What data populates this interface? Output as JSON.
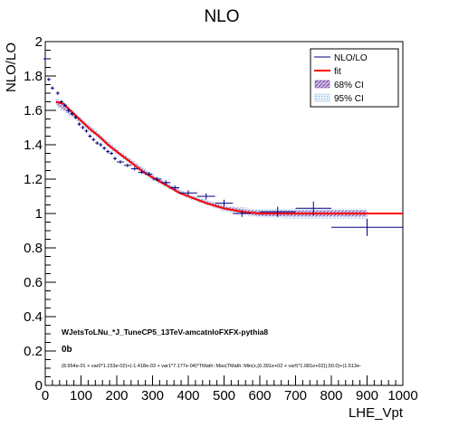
{
  "chart_data": {
    "type": "scatter",
    "title": "NLO",
    "xlabel": "LHE_Vpt",
    "ylabel": "NLO/LO",
    "xlim": [
      0,
      1000
    ],
    "ylim": [
      0,
      2
    ],
    "x_ticks": [
      0,
      100,
      200,
      300,
      400,
      500,
      600,
      700,
      800,
      900,
      1000
    ],
    "x_tick_labels": [
      "0",
      "100",
      "200",
      "300",
      "400",
      "500",
      "600",
      "700",
      "800",
      "900",
      "1000"
    ],
    "y_ticks": [
      0,
      0.2,
      0.4,
      0.6,
      0.8,
      1,
      1.2,
      1.4,
      1.6,
      1.8,
      2
    ],
    "y_tick_labels": [
      "0",
      "0.2",
      "0.4",
      "0.6",
      "0.8",
      "1",
      "1.2",
      "1.4",
      "1.6",
      "1.8",
      "2"
    ],
    "legend": {
      "position": "top-right",
      "entries": [
        {
          "label": "NLO/LO",
          "color": "#000080",
          "style": "errorbar"
        },
        {
          "label": "fit",
          "color": "#ff0000",
          "style": "line"
        },
        {
          "label": "68% CI",
          "color": "#6a3d9a",
          "style": "hatched-fill"
        },
        {
          "label": "95% CI",
          "color": "#87b8e0",
          "style": "dotted-fill"
        }
      ]
    },
    "annotations": [
      "WJetsToLNu_*J_TuneCP5_13TeV-amcatnloFXFX-pythia8",
      "0b",
      "(8.954e-01 + var0*1.153e-02)+(-1.418e-03 + var1*7.177e-04)*TMath::Max(TMath::Min(x,(6.391e+02 + var5*1.081e+02)),50.0)+(1.513e-"
    ],
    "series": [
      {
        "name": "NLO/LO",
        "color": "#000080",
        "points": [
          {
            "x": 0,
            "xerr": 5,
            "y": 1.9,
            "yerr": 0.01
          },
          {
            "x": 10,
            "xerr": 5,
            "y": 1.78,
            "yerr": 0.01
          },
          {
            "x": 20,
            "xerr": 5,
            "y": 1.73,
            "yerr": 0.01
          },
          {
            "x": 35,
            "xerr": 5,
            "y": 1.7,
            "yerr": 0.01
          },
          {
            "x": 45,
            "xerr": 5,
            "y": 1.65,
            "yerr": 0.01
          },
          {
            "x": 55,
            "xerr": 5,
            "y": 1.63,
            "yerr": 0.01
          },
          {
            "x": 65,
            "xerr": 5,
            "y": 1.6,
            "yerr": 0.01
          },
          {
            "x": 75,
            "xerr": 5,
            "y": 1.58,
            "yerr": 0.01
          },
          {
            "x": 85,
            "xerr": 5,
            "y": 1.56,
            "yerr": 0.01
          },
          {
            "x": 95,
            "xerr": 5,
            "y": 1.52,
            "yerr": 0.01
          },
          {
            "x": 105,
            "xerr": 5,
            "y": 1.5,
            "yerr": 0.01
          },
          {
            "x": 115,
            "xerr": 5,
            "y": 1.48,
            "yerr": 0.01
          },
          {
            "x": 125,
            "xerr": 5,
            "y": 1.45,
            "yerr": 0.01
          },
          {
            "x": 135,
            "xerr": 5,
            "y": 1.43,
            "yerr": 0.01
          },
          {
            "x": 145,
            "xerr": 5,
            "y": 1.41,
            "yerr": 0.01
          },
          {
            "x": 155,
            "xerr": 5,
            "y": 1.4,
            "yerr": 0.01
          },
          {
            "x": 165,
            "xerr": 5,
            "y": 1.38,
            "yerr": 0.01
          },
          {
            "x": 175,
            "xerr": 5,
            "y": 1.36,
            "yerr": 0.01
          },
          {
            "x": 185,
            "xerr": 5,
            "y": 1.35,
            "yerr": 0.01
          },
          {
            "x": 195,
            "xerr": 5,
            "y": 1.32,
            "yerr": 0.01
          },
          {
            "x": 210,
            "xerr": 10,
            "y": 1.3,
            "yerr": 0.01
          },
          {
            "x": 230,
            "xerr": 10,
            "y": 1.28,
            "yerr": 0.01
          },
          {
            "x": 250,
            "xerr": 10,
            "y": 1.26,
            "yerr": 0.01
          },
          {
            "x": 270,
            "xerr": 10,
            "y": 1.24,
            "yerr": 0.01
          },
          {
            "x": 290,
            "xerr": 10,
            "y": 1.23,
            "yerr": 0.012
          },
          {
            "x": 312.5,
            "xerr": 12.5,
            "y": 1.2,
            "yerr": 0.012
          },
          {
            "x": 337.5,
            "xerr": 12.5,
            "y": 1.18,
            "yerr": 0.013
          },
          {
            "x": 362.5,
            "xerr": 12.5,
            "y": 1.15,
            "yerr": 0.013
          },
          {
            "x": 400,
            "xerr": 25,
            "y": 1.12,
            "yerr": 0.015
          },
          {
            "x": 450,
            "xerr": 25,
            "y": 1.1,
            "yerr": 0.018
          },
          {
            "x": 500,
            "xerr": 25,
            "y": 1.06,
            "yerr": 0.02
          },
          {
            "x": 550,
            "xerr": 25,
            "y": 1.0,
            "yerr": 0.02
          },
          {
            "x": 650,
            "xerr": 50,
            "y": 1.01,
            "yerr": 0.03
          },
          {
            "x": 750,
            "xerr": 50,
            "y": 1.03,
            "yerr": 0.04
          },
          {
            "x": 900,
            "xerr": 100,
            "y": 0.92,
            "yerr": 0.05
          }
        ]
      },
      {
        "name": "fit",
        "color": "#ff0000",
        "type": "line",
        "x": [
          30,
          50,
          75,
          100,
          125,
          150,
          175,
          200,
          225,
          250,
          275,
          300,
          325,
          350,
          375,
          400,
          425,
          450,
          475,
          500,
          525,
          550,
          575,
          600,
          639,
          700,
          800,
          900,
          1000
        ],
        "y": [
          1.65,
          1.64,
          1.59,
          1.54,
          1.49,
          1.45,
          1.4,
          1.36,
          1.32,
          1.28,
          1.24,
          1.21,
          1.18,
          1.15,
          1.12,
          1.1,
          1.08,
          1.06,
          1.045,
          1.03,
          1.02,
          1.01,
          1.005,
          1.0,
          1.0,
          1.0,
          1.0,
          1.0,
          1.0
        ]
      }
    ],
    "bands": [
      {
        "name": "95% CI",
        "color": "#87b8e0",
        "x": [
          30,
          100,
          200,
          300,
          400,
          500,
          600,
          700,
          800,
          900
        ],
        "lower": [
          1.62,
          1.52,
          1.34,
          1.19,
          1.085,
          1.01,
          0.975,
          0.97,
          0.97,
          0.97
        ],
        "upper": [
          1.68,
          1.56,
          1.38,
          1.23,
          1.115,
          1.05,
          1.025,
          1.03,
          1.03,
          1.03
        ]
      },
      {
        "name": "68% CI",
        "color": "#6a3d9a",
        "x": [
          30,
          100,
          200,
          300,
          400,
          500,
          600,
          700,
          800,
          900
        ],
        "lower": [
          1.635,
          1.53,
          1.35,
          1.2,
          1.093,
          1.02,
          0.985,
          0.982,
          0.982,
          0.982
        ],
        "upper": [
          1.665,
          1.55,
          1.37,
          1.22,
          1.107,
          1.04,
          1.015,
          1.018,
          1.018,
          1.018
        ]
      }
    ]
  }
}
